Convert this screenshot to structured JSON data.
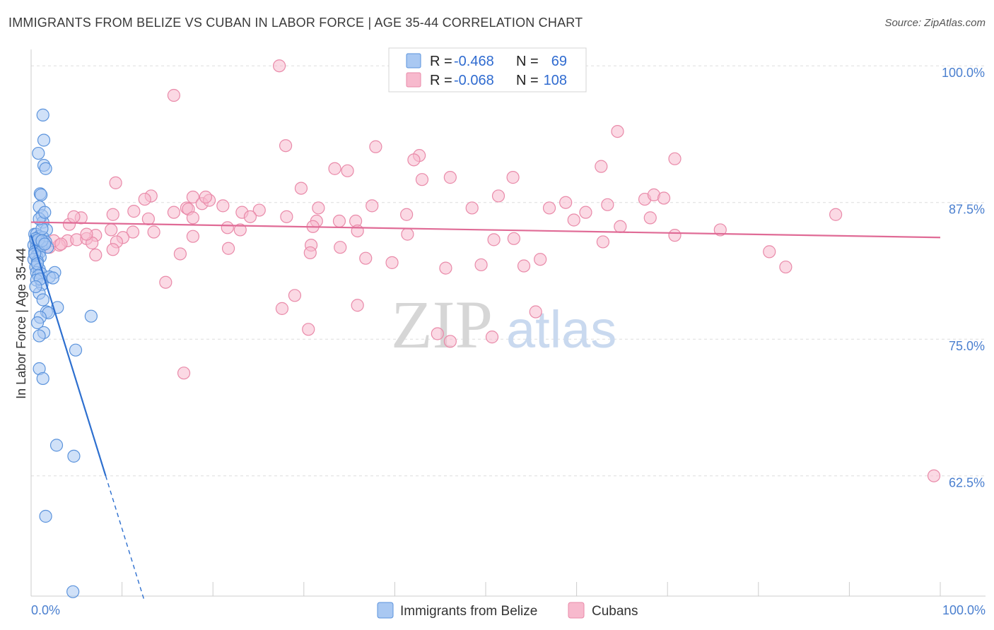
{
  "title": "IMMIGRANTS FROM BELIZE VS CUBAN IN LABOR FORCE | AGE 35-44 CORRELATION CHART",
  "source": "Source: ZipAtlas.com",
  "watermark": {
    "zip": "ZIP",
    "atlas": "atlas"
  },
  "colors": {
    "blue_fill": "#a9c8f2",
    "blue_stroke": "#5b93dc",
    "blue_line": "#2d6fcf",
    "pink_fill": "#f7b9cd",
    "pink_stroke": "#e98aa9",
    "pink_line": "#e06b96",
    "grid": "#dddddd",
    "tick_text": "#4a7fcf"
  },
  "legend": {
    "r_label": "R =",
    "n_label": "N =",
    "rows": [
      {
        "r": "-0.468",
        "n": "69",
        "series": "blue"
      },
      {
        "r": "-0.068",
        "n": "108",
        "series": "pink"
      }
    ]
  },
  "chart_data": {
    "type": "scatter",
    "title": "IMMIGRANTS FROM BELIZE VS CUBAN IN LABOR FORCE | AGE 35-44 CORRELATION CHART",
    "xlabel": "",
    "ylabel": "In Labor Force | Age 35-44",
    "xlim": [
      0,
      100
    ],
    "ylim": [
      51.5,
      101.5
    ],
    "x_tick_labels": [
      "0.0%",
      "100.0%"
    ],
    "y_ticks": [
      62.5,
      75.0,
      87.5,
      100.0
    ],
    "y_tick_labels": [
      "62.5%",
      "75.0%",
      "87.5%",
      "100.0%"
    ],
    "series": [
      {
        "name": "Immigrants from Belize",
        "color": "blue",
        "trend": {
          "x0": 0.0,
          "y0": 84.5,
          "x1": 8.2,
          "y1": 62.5,
          "dash_to_x": 12.5
        },
        "points": [
          [
            1.3,
            95.5
          ],
          [
            1.4,
            93.2
          ],
          [
            0.8,
            92.0
          ],
          [
            1.4,
            90.9
          ],
          [
            1.6,
            90.6
          ],
          [
            1.0,
            88.3
          ],
          [
            1.1,
            88.2
          ],
          [
            0.9,
            87.1
          ],
          [
            1.2,
            86.3
          ],
          [
            1.3,
            85.7
          ],
          [
            1.7,
            85.0
          ],
          [
            0.4,
            84.6
          ],
          [
            0.6,
            84.6
          ],
          [
            0.9,
            84.4
          ],
          [
            1.3,
            84.3
          ],
          [
            0.5,
            84.0
          ],
          [
            0.7,
            83.9
          ],
          [
            1.0,
            83.9
          ],
          [
            1.4,
            83.8
          ],
          [
            1.6,
            83.9
          ],
          [
            0.3,
            83.6
          ],
          [
            0.6,
            83.5
          ],
          [
            0.8,
            83.4
          ],
          [
            1.1,
            83.5
          ],
          [
            1.8,
            83.4
          ],
          [
            0.4,
            83.0
          ],
          [
            0.9,
            82.9
          ],
          [
            0.6,
            82.6
          ],
          [
            1.0,
            82.5
          ],
          [
            0.3,
            82.3
          ],
          [
            0.7,
            82.1
          ],
          [
            0.5,
            81.6
          ],
          [
            0.9,
            81.4
          ],
          [
            0.6,
            81.1
          ],
          [
            1.1,
            81.0
          ],
          [
            2.6,
            81.1
          ],
          [
            0.8,
            80.8
          ],
          [
            2.0,
            80.7
          ],
          [
            2.4,
            80.6
          ],
          [
            0.6,
            80.4
          ],
          [
            1.2,
            80.0
          ],
          [
            0.9,
            79.2
          ],
          [
            1.3,
            78.6
          ],
          [
            2.9,
            77.9
          ],
          [
            1.7,
            77.5
          ],
          [
            1.9,
            77.4
          ],
          [
            6.6,
            77.1
          ],
          [
            1.0,
            77.0
          ],
          [
            0.7,
            76.5
          ],
          [
            1.4,
            75.6
          ],
          [
            0.9,
            75.3
          ],
          [
            4.9,
            74.0
          ],
          [
            0.9,
            72.3
          ],
          [
            1.3,
            71.4
          ],
          [
            2.8,
            65.3
          ],
          [
            4.7,
            64.3
          ],
          [
            1.6,
            58.8
          ],
          [
            4.6,
            51.9
          ],
          [
            0.5,
            84.2
          ],
          [
            0.8,
            84.1
          ],
          [
            1.2,
            84.0
          ],
          [
            1.5,
            83.7
          ],
          [
            0.4,
            82.8
          ],
          [
            0.7,
            81.9
          ],
          [
            1.0,
            80.5
          ],
          [
            0.5,
            79.8
          ],
          [
            1.2,
            85.1
          ],
          [
            0.9,
            86.0
          ],
          [
            1.5,
            86.6
          ]
        ]
      },
      {
        "name": "Cubans",
        "color": "pink",
        "trend": {
          "x0": 0.0,
          "y0": 85.7,
          "x1": 100.0,
          "y1": 84.3
        },
        "points": [
          [
            27.3,
            100.0
          ],
          [
            15.7,
            97.3
          ],
          [
            64.5,
            94.0
          ],
          [
            28.0,
            92.7
          ],
          [
            37.9,
            92.6
          ],
          [
            42.7,
            91.8
          ],
          [
            42.1,
            91.4
          ],
          [
            70.8,
            91.5
          ],
          [
            33.4,
            90.6
          ],
          [
            34.8,
            90.4
          ],
          [
            62.7,
            90.8
          ],
          [
            9.3,
            89.3
          ],
          [
            43.0,
            89.6
          ],
          [
            46.1,
            89.8
          ],
          [
            53.0,
            89.8
          ],
          [
            29.7,
            88.8
          ],
          [
            13.2,
            88.1
          ],
          [
            12.5,
            87.8
          ],
          [
            17.8,
            88.0
          ],
          [
            18.8,
            87.4
          ],
          [
            19.6,
            87.7
          ],
          [
            17.1,
            87.0
          ],
          [
            21.1,
            87.2
          ],
          [
            19.2,
            88.0
          ],
          [
            51.4,
            88.1
          ],
          [
            17.3,
            86.9
          ],
          [
            63.4,
            87.3
          ],
          [
            58.8,
            87.5
          ],
          [
            11.3,
            86.7
          ],
          [
            15.7,
            86.6
          ],
          [
            23.2,
            86.6
          ],
          [
            25.1,
            86.8
          ],
          [
            31.6,
            87.0
          ],
          [
            37.5,
            87.2
          ],
          [
            48.5,
            87.0
          ],
          [
            57.0,
            87.0
          ],
          [
            67.5,
            87.8
          ],
          [
            68.5,
            88.2
          ],
          [
            69.6,
            87.9
          ],
          [
            88.5,
            86.4
          ],
          [
            5.5,
            86.1
          ],
          [
            9.0,
            86.4
          ],
          [
            12.9,
            86.0
          ],
          [
            17.8,
            86.1
          ],
          [
            24.1,
            86.2
          ],
          [
            28.1,
            86.2
          ],
          [
            31.4,
            85.8
          ],
          [
            33.9,
            85.8
          ],
          [
            35.7,
            85.8
          ],
          [
            41.3,
            86.4
          ],
          [
            59.7,
            85.9
          ],
          [
            61.0,
            86.6
          ],
          [
            68.1,
            86.1
          ],
          [
            4.2,
            85.5
          ],
          [
            8.8,
            85.0
          ],
          [
            11.2,
            84.8
          ],
          [
            13.5,
            84.8
          ],
          [
            21.6,
            85.2
          ],
          [
            23.0,
            85.0
          ],
          [
            31.0,
            85.3
          ],
          [
            35.9,
            84.9
          ],
          [
            41.4,
            84.6
          ],
          [
            53.1,
            84.2
          ],
          [
            64.8,
            85.3
          ],
          [
            70.8,
            84.5
          ],
          [
            75.8,
            85.0
          ],
          [
            7.1,
            84.5
          ],
          [
            10.1,
            84.3
          ],
          [
            17.8,
            84.4
          ],
          [
            4.0,
            84.0
          ],
          [
            5.0,
            84.1
          ],
          [
            6.1,
            84.2
          ],
          [
            9.4,
            83.9
          ],
          [
            6.7,
            83.8
          ],
          [
            30.8,
            83.6
          ],
          [
            50.9,
            84.1
          ],
          [
            62.9,
            83.9
          ],
          [
            2.0,
            83.4
          ],
          [
            3.1,
            83.6
          ],
          [
            9.0,
            83.2
          ],
          [
            21.7,
            83.3
          ],
          [
            34.0,
            83.4
          ],
          [
            7.1,
            82.7
          ],
          [
            16.4,
            82.8
          ],
          [
            30.7,
            82.9
          ],
          [
            36.8,
            82.4
          ],
          [
            39.7,
            82.0
          ],
          [
            56.0,
            82.3
          ],
          [
            81.2,
            83.0
          ],
          [
            45.6,
            81.5
          ],
          [
            49.5,
            81.8
          ],
          [
            54.2,
            81.7
          ],
          [
            83.0,
            81.6
          ],
          [
            14.8,
            80.2
          ],
          [
            29.0,
            79.0
          ],
          [
            35.9,
            78.1
          ],
          [
            27.6,
            77.8
          ],
          [
            55.5,
            77.5
          ],
          [
            30.5,
            75.9
          ],
          [
            44.7,
            75.5
          ],
          [
            46.1,
            74.8
          ],
          [
            50.7,
            75.2
          ],
          [
            16.8,
            71.9
          ],
          [
            99.3,
            62.5
          ],
          [
            2.5,
            84.0
          ],
          [
            3.3,
            83.7
          ],
          [
            4.7,
            86.2
          ],
          [
            6.1,
            84.6
          ]
        ]
      }
    ]
  }
}
